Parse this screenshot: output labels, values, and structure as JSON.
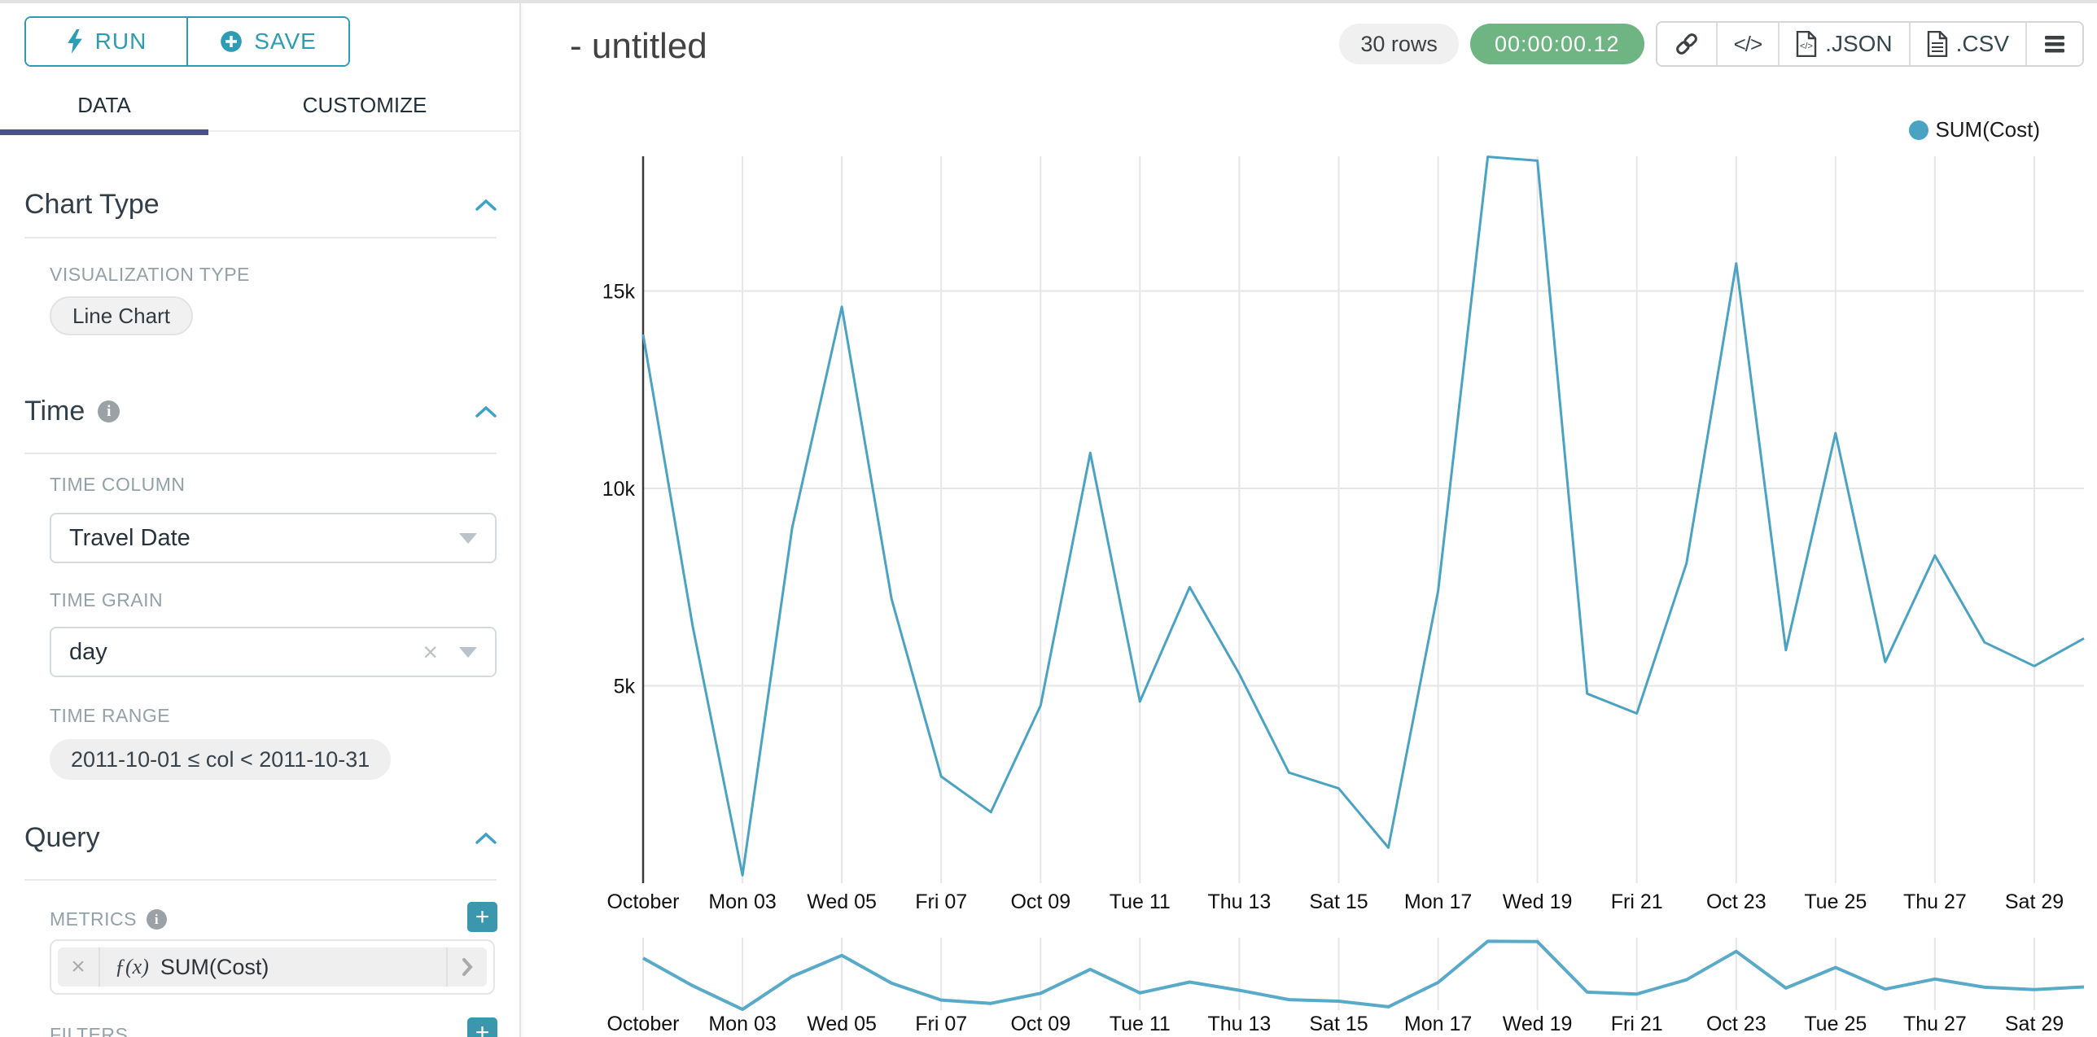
{
  "colors": {
    "accent_teal": "#2d9cb4",
    "plus_button_teal": "#3a97ae",
    "line": "#4ba3c3",
    "tab_active_underline": "#4a5384",
    "timer_green": "#6fb483",
    "gridline": "#e6e6e6",
    "axis_line": "#3a3a3a"
  },
  "sidebar": {
    "run_button": {
      "label": "RUN"
    },
    "save_button": {
      "label": "SAVE"
    },
    "tabs": [
      {
        "label": "DATA"
      },
      {
        "label": "CUSTOMIZE"
      }
    ],
    "chart_type": {
      "title": "Chart Type",
      "viz_label": "VISUALIZATION TYPE",
      "viz_value": "Line Chart"
    },
    "time": {
      "title": "Time",
      "column_label": "TIME COLUMN",
      "column_value": "Travel Date",
      "grain_label": "TIME GRAIN",
      "grain_value": "day",
      "range_label": "TIME RANGE",
      "range_value": "2011-10-01 ≤ col < 2011-10-31"
    },
    "query": {
      "title": "Query",
      "metrics_label": "METRICS",
      "metric": {
        "fx": "ƒ(x)",
        "name": "SUM(Cost)"
      },
      "filters_label": "FILTERS"
    }
  },
  "header": {
    "title": "- untitled",
    "rows_badge": "30 rows",
    "timer_badge": "00:00:00.12",
    "json_label": ".JSON",
    "csv_label": ".CSV"
  },
  "chart_data": {
    "type": "line",
    "title": "",
    "xlabel": "",
    "ylabel": "",
    "legend": {
      "label": "SUM(Cost)",
      "position": "top-right"
    },
    "grid": true,
    "has_range_minimap": true,
    "ylim": [
      0,
      18400
    ],
    "y_ticks": [
      {
        "value": 5000,
        "label": "5k"
      },
      {
        "value": 10000,
        "label": "10k"
      },
      {
        "value": 15000,
        "label": "15k"
      }
    ],
    "x": [
      "2011-10-01",
      "2011-10-02",
      "2011-10-03",
      "2011-10-04",
      "2011-10-05",
      "2011-10-06",
      "2011-10-07",
      "2011-10-08",
      "2011-10-09",
      "2011-10-10",
      "2011-10-11",
      "2011-10-12",
      "2011-10-13",
      "2011-10-14",
      "2011-10-15",
      "2011-10-16",
      "2011-10-17",
      "2011-10-18",
      "2011-10-19",
      "2011-10-20",
      "2011-10-21",
      "2011-10-22",
      "2011-10-23",
      "2011-10-24",
      "2011-10-25",
      "2011-10-26",
      "2011-10-27",
      "2011-10-28",
      "2011-10-29",
      "2011-10-30"
    ],
    "series": [
      {
        "name": "SUM(Cost)",
        "values": [
          13900,
          6500,
          200,
          9000,
          14600,
          7200,
          2700,
          1800,
          4500,
          10900,
          4600,
          7500,
          5300,
          2800,
          2400,
          900,
          7400,
          18400,
          18300,
          4800,
          4300,
          8100,
          15700,
          5900,
          11400,
          5600,
          8300,
          6100,
          5500,
          6200
        ]
      }
    ],
    "x_tick_labels": [
      {
        "day": 0,
        "label": "October"
      },
      {
        "day": 2,
        "label": "Mon 03"
      },
      {
        "day": 4,
        "label": "Wed 05"
      },
      {
        "day": 6,
        "label": "Fri 07"
      },
      {
        "day": 8,
        "label": "Oct 09"
      },
      {
        "day": 10,
        "label": "Tue 11"
      },
      {
        "day": 12,
        "label": "Thu 13"
      },
      {
        "day": 14,
        "label": "Sat 15"
      },
      {
        "day": 16,
        "label": "Mon 17"
      },
      {
        "day": 18,
        "label": "Wed 19"
      },
      {
        "day": 20,
        "label": "Fri 21"
      },
      {
        "day": 22,
        "label": "Oct 23"
      },
      {
        "day": 24,
        "label": "Tue 25"
      },
      {
        "day": 26,
        "label": "Thu 27"
      },
      {
        "day": 28,
        "label": "Sat 29"
      }
    ]
  }
}
